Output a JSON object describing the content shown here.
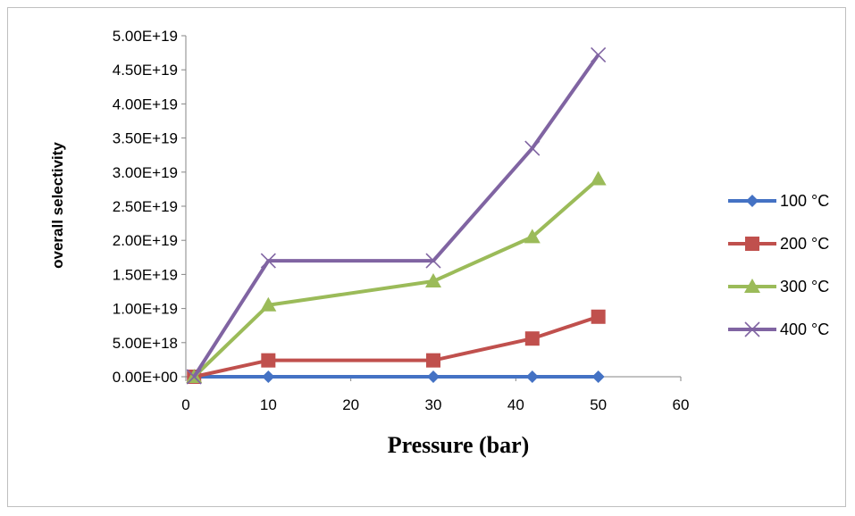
{
  "chart_data": {
    "type": "line",
    "title": "",
    "xlabel": "Pressure (bar)",
    "ylabel": "overall selectivity",
    "xlim": [
      0,
      60
    ],
    "ylim": [
      0,
      5e+19
    ],
    "x_ticks": [
      "0",
      "10",
      "20",
      "30",
      "40",
      "50",
      "60"
    ],
    "y_ticks": [
      "0.00E+00",
      "5.00E+18",
      "1.00E+19",
      "1.50E+19",
      "2.00E+19",
      "2.50E+19",
      "3.00E+19",
      "3.50E+19",
      "4.00E+19",
      "4.50E+19",
      "5.00E+19"
    ],
    "grid": false,
    "legend_position": "right",
    "series": [
      {
        "name": "100 °C",
        "color": "#4472c4",
        "marker": "diamond",
        "x": [
          1,
          10,
          30,
          42,
          50
        ],
        "y": [
          0,
          0,
          0,
          0,
          0
        ]
      },
      {
        "name": "200 °C",
        "color": "#c0504d",
        "marker": "square",
        "x": [
          1,
          10,
          30,
          42,
          50
        ],
        "y": [
          0,
          2.4e+18,
          2.4e+18,
          5.6e+18,
          8.8e+18
        ]
      },
      {
        "name": "300 °C",
        "color": "#9bbb59",
        "marker": "triangle",
        "x": [
          1,
          10,
          30,
          42,
          50
        ],
        "y": [
          0,
          1.05e+19,
          1.4e+19,
          2.05e+19,
          2.9e+19
        ]
      },
      {
        "name": "400 °C",
        "color": "#8064a2",
        "marker": "x",
        "x": [
          1,
          10,
          30,
          42,
          50
        ],
        "y": [
          0,
          1.7e+19,
          1.7e+19,
          3.35e+19,
          4.72e+19
        ]
      }
    ]
  }
}
